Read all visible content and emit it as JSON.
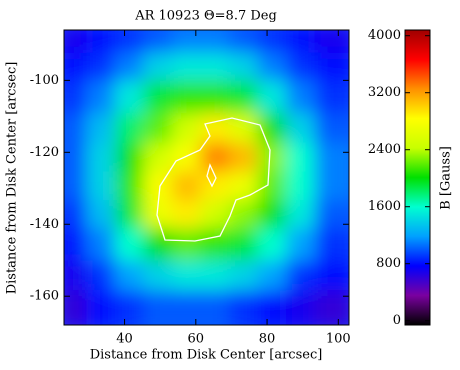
{
  "chart_data": {
    "type": "heatmap",
    "title": "AR 10923 Θ=8.7 Deg",
    "x_label": "Distance from Disk Center [arcsec]",
    "y_label": "Distance from Disk Center [arcsec]",
    "colorbar_label": "B [Gauss]",
    "x": [
      27,
      35,
      43,
      51,
      59,
      67,
      75,
      83,
      91,
      99
    ],
    "y": [
      -90,
      -98,
      -106,
      -115,
      -123,
      -131,
      -139,
      -147,
      -156,
      -164
    ],
    "z": [
      [
        700,
        800,
        900,
        1000,
        1100,
        1100,
        1000,
        900,
        800,
        700
      ],
      [
        800,
        900,
        1100,
        1400,
        1500,
        1500,
        1400,
        1100,
        900,
        800
      ],
      [
        900,
        1100,
        1500,
        1900,
        2100,
        2100,
        1900,
        1500,
        1100,
        900
      ],
      [
        1000,
        1300,
        1800,
        2200,
        2500,
        2900,
        2600,
        2000,
        1400,
        1000
      ],
      [
        1000,
        1400,
        2000,
        2500,
        2800,
        3300,
        3100,
        2300,
        1600,
        1100
      ],
      [
        1000,
        1400,
        2100,
        2800,
        3100,
        2900,
        2700,
        2200,
        1600,
        1100
      ],
      [
        900,
        1300,
        1900,
        2700,
        2900,
        2500,
        2300,
        2000,
        1500,
        1000
      ],
      [
        800,
        1100,
        1600,
        2000,
        2200,
        2100,
        1900,
        1600,
        1200,
        900
      ],
      [
        700,
        900,
        1200,
        1400,
        1500,
        1500,
        1400,
        1200,
        900,
        800
      ],
      [
        600,
        800,
        900,
        1000,
        1000,
        1000,
        900,
        800,
        700,
        600
      ]
    ],
    "xlim": [
      23,
      103
    ],
    "xticks": [
      40,
      60,
      80,
      100
    ],
    "ylim": [
      -168,
      -86
    ],
    "yticks": [
      -100,
      -120,
      -140,
      -160
    ],
    "zlim": [
      -60,
      4080
    ],
    "zticks": [
      0,
      800,
      1600,
      2400,
      3200,
      4000
    ],
    "colormap": [
      "#000000",
      "#7a00a0",
      "#0000ff",
      "#00a0ff",
      "#00ffd0",
      "#00e000",
      "#c8ff00",
      "#ffff00",
      "#ff9000",
      "#ff0000",
      "#a00000"
    ]
  }
}
